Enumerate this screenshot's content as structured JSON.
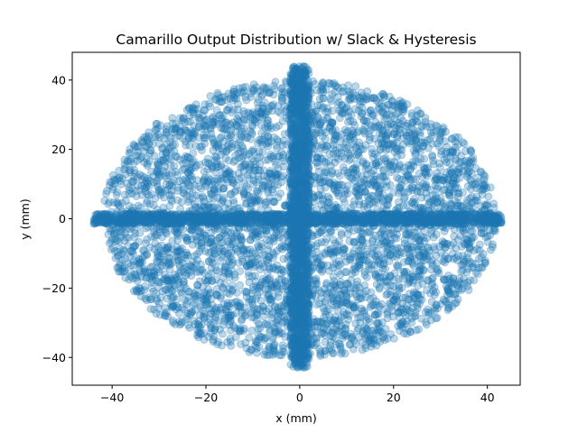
{
  "chart_data": {
    "type": "scatter",
    "title": "Camarillo Output Distribution w/ Slack & Hysteresis",
    "xlabel": "x (mm)",
    "ylabel": "y (mm)",
    "xlim": [
      -48.5,
      47.0
    ],
    "ylim": [
      -48.0,
      48.0
    ],
    "xticks": [
      -40,
      -20,
      0,
      20,
      40
    ],
    "yticks": [
      -40,
      -20,
      0,
      20,
      40
    ],
    "xtick_labels": [
      "−40",
      "−20",
      "0",
      "20",
      "40"
    ],
    "ytick_labels": [
      "−40",
      "−20",
      "0",
      "20",
      "40"
    ],
    "grid": false,
    "legend": "none",
    "marker_color": "#1f77b4",
    "marker_alpha": 0.3,
    "series": [
      {
        "distribution": "uniform disk (elliptical)",
        "x_range": [
          -42,
          42
        ],
        "y_range": [
          -40,
          40
        ],
        "approx_points": 4200
      },
      {
        "distribution": "horizontal band along y = 0",
        "x_range": [
          -44,
          43
        ],
        "y_range": [
          -1.5,
          1.5
        ],
        "approx_points": 1500
      },
      {
        "distribution": "vertical band along x = 0",
        "x_range": [
          -2,
          2
        ],
        "y_range": [
          -43,
          44
        ],
        "approx_points": 1500
      }
    ]
  }
}
